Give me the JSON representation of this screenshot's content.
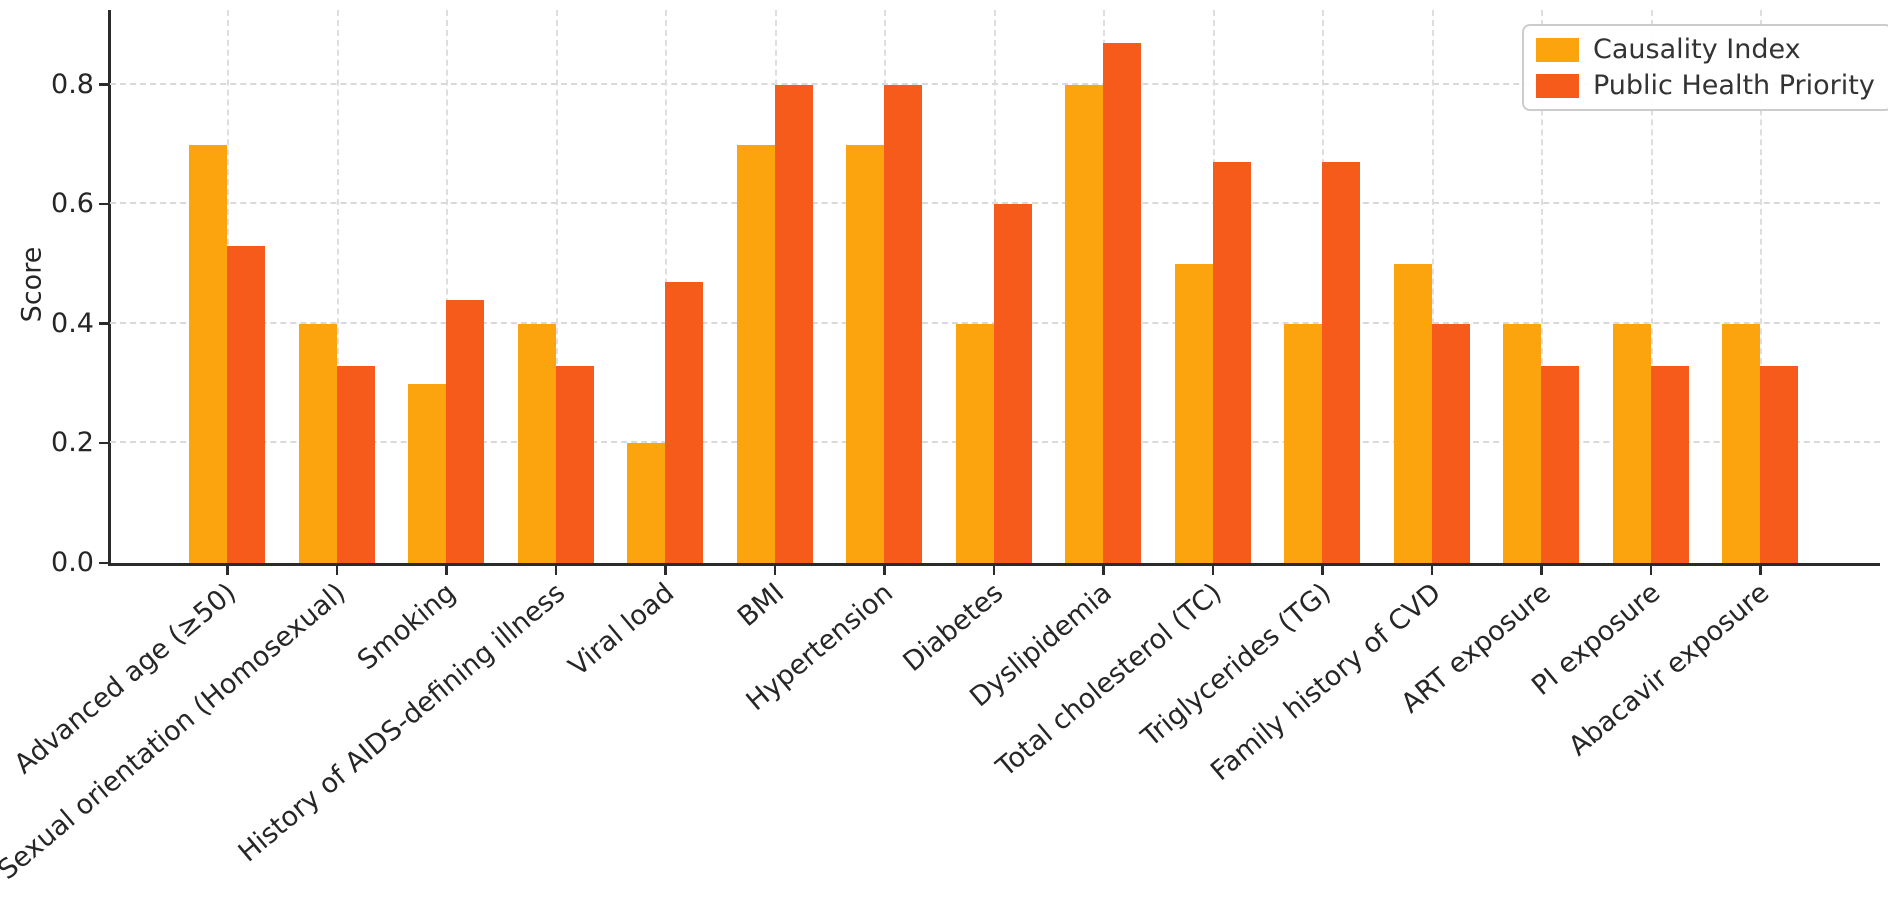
{
  "chart_data": {
    "type": "bar",
    "title": "",
    "xlabel": "",
    "ylabel": "Score",
    "categories": [
      "Advanced age (≥50)",
      "Sexual orientation (Homosexual)",
      "Smoking",
      "History of AIDS-defining illness",
      "Viral load",
      "BMI",
      "Hypertension",
      "Diabetes",
      "Dyslipidemia",
      "Total cholesterol (TC)",
      "Triglycerides (TG)",
      "Family history of CVD",
      "ART exposure",
      "PI exposure",
      "Abacavir exposure"
    ],
    "series": [
      {
        "name": "Causality Index",
        "color": "#FCA40D",
        "values": [
          0.7,
          0.4,
          0.3,
          0.4,
          0.2,
          0.7,
          0.7,
          0.4,
          0.8,
          0.5,
          0.4,
          0.5,
          0.4,
          0.4,
          0.4
        ]
      },
      {
        "name": "Public Health Priority",
        "color": "#F75B1C",
        "values": [
          0.53,
          0.33,
          0.44,
          0.33,
          0.47,
          0.8,
          0.8,
          0.6,
          0.87,
          0.67,
          0.67,
          0.4,
          0.33,
          0.33,
          0.33
        ]
      }
    ],
    "yticks": [
      "0.0",
      "0.2",
      "0.4",
      "0.6",
      "0.8"
    ],
    "ytick_values": [
      0.0,
      0.2,
      0.4,
      0.6,
      0.8
    ],
    "ylim": [
      0,
      0.925
    ],
    "grid": true,
    "grid_style": "dashed",
    "legend_position": "upper right",
    "axis_color": "#2b2b2b",
    "grid_color": "#d9d9d9"
  }
}
